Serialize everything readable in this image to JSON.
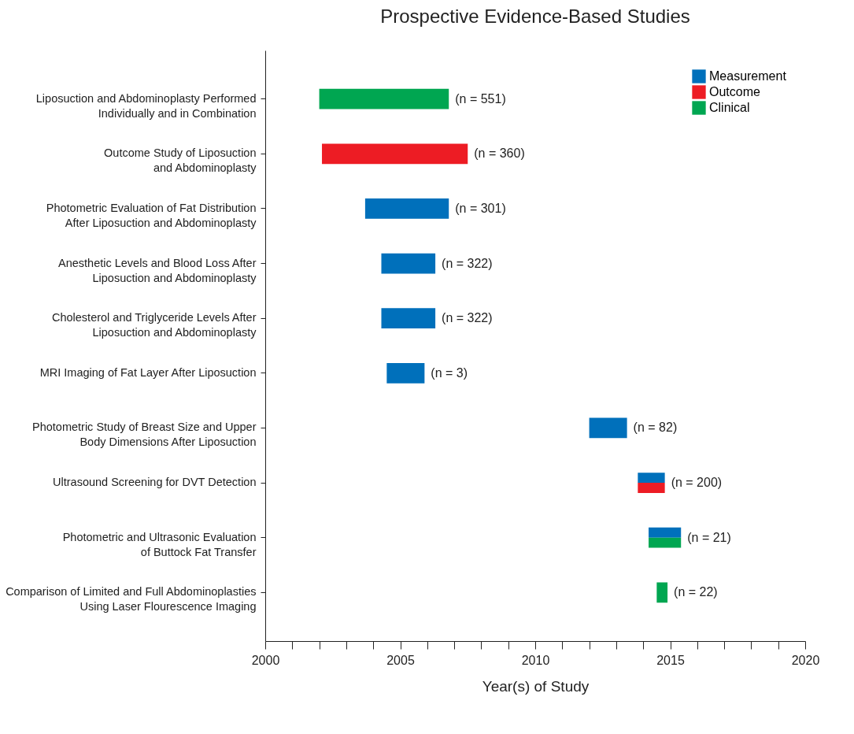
{
  "chart_data": {
    "type": "bar",
    "orientation": "horizontal",
    "title": "Prospective Evidence-Based Studies",
    "xlabel": "Year(s) of Study",
    "categories": [
      "Liposuction and Abdominoplasty Performed\nIndividually and in Combination",
      "Outcome Study of Liposuction\nand Abdominoplasty",
      "Photometric Evaluation of Fat Distribution\nAfter Liposuction and Abdominoplasty",
      "Anesthetic Levels and Blood Loss After\nLiposuction and Abdominoplasty",
      "Cholesterol and Triglyceride Levels After\nLiposuction and Abdominoplasty",
      "MRI Imaging of Fat Layer After Liposuction",
      "Photometric Study of Breast Size and Upper\nBody Dimensions After Liposuction",
      "Ultrasound Screening for DVT Detection",
      "Photometric and Ultrasonic Evaluation\nof Buttock Fat Transfer",
      "Comparison of Limited and Full Abdominoplasties\nUsing Laser Flourescence Imaging"
    ],
    "series": [
      {
        "name": "Measurement",
        "color": "#0070bb",
        "base": [
          null,
          null,
          2003.7,
          2004.3,
          2004.3,
          2004.5,
          2012.0,
          2013.8,
          2014.2,
          null
        ],
        "values": [
          null,
          null,
          3.1,
          2.0,
          2.0,
          1.4,
          1.4,
          1.0,
          1.2,
          null
        ]
      },
      {
        "name": "Outcome",
        "color": "#ed1c24",
        "base": [
          null,
          2002.1,
          null,
          null,
          null,
          null,
          null,
          2013.8,
          null,
          null
        ],
        "values": [
          null,
          5.4,
          null,
          null,
          null,
          null,
          null,
          1.0,
          null,
          null
        ]
      },
      {
        "name": "Clinical",
        "color": "#00a651",
        "base": [
          2002.0,
          null,
          null,
          null,
          null,
          null,
          null,
          null,
          2014.2,
          2014.5
        ],
        "values": [
          4.8,
          null,
          null,
          null,
          null,
          null,
          null,
          null,
          1.2,
          0.4
        ]
      }
    ],
    "xlim": [
      2000,
      2020
    ],
    "xticks": [
      2000,
      {
        "value": 2001,
        "label": null
      },
      {
        "value": 2002,
        "label": null
      },
      {
        "value": 2003,
        "label": null
      },
      {
        "value": 2004,
        "label": null
      },
      2005,
      {
        "value": 2006,
        "label": null
      },
      {
        "value": 2007,
        "label": null
      },
      {
        "value": 2008,
        "label": null
      },
      {
        "value": 2009,
        "label": null
      },
      2010,
      {
        "value": 2011,
        "label": null
      },
      {
        "value": 2012,
        "label": null
      },
      {
        "value": 2013,
        "label": null
      },
      {
        "value": 2014,
        "label": null
      },
      2015,
      {
        "value": 2016,
        "label": null
      },
      {
        "value": 2017,
        "label": null
      },
      {
        "value": 2018,
        "label": null
      },
      {
        "value": 2019,
        "label": null
      },
      2020
    ],
    "annotations": [
      "(n = 551)",
      "(n = 360)",
      "(n = 301)",
      "(n = 322)",
      "(n = 322)",
      "(n = 3)",
      "(n = 82)",
      "(n = 200)",
      "(n = 21)",
      "(n = 22)"
    ],
    "legend": "top right",
    "grid": false
  }
}
